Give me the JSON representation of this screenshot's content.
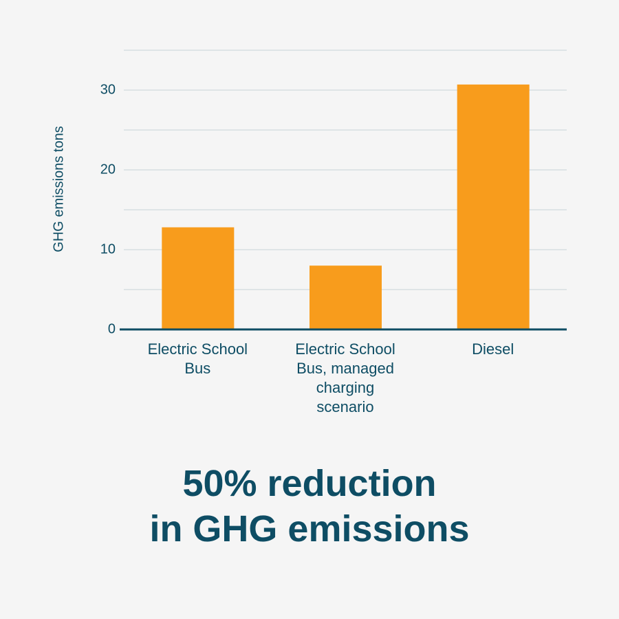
{
  "chart_data": {
    "type": "bar",
    "ylabel": "GHG emissions tons",
    "categories": [
      "Electric School Bus",
      "Electric School Bus, managed charging scenario",
      "Diesel"
    ],
    "values": [
      12.8,
      8,
      30.7
    ],
    "color": "#f89c1c",
    "ylim": [
      0,
      35
    ],
    "yticks": [
      0,
      10,
      20,
      30
    ],
    "minor_yticks": [
      5,
      15,
      25,
      35
    ],
    "grid": true,
    "annotation_lines": [
      "50% reduction",
      "in GHG emissions"
    ]
  }
}
